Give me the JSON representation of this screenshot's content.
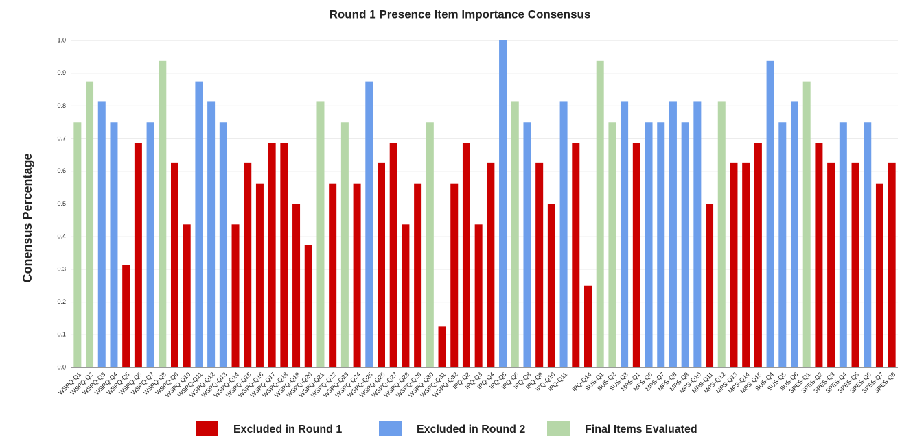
{
  "chart_data": {
    "type": "bar",
    "title": "Round 1 Presence Item Importance Consensus",
    "y_label": "Conensus Percentage",
    "categories": [
      "WSPQ-Q1",
      "WSPQ-Q2",
      "WSPQ-Q3",
      "WSPQ-Q4",
      "WSPQ-Q5",
      "WSPQ-Q6",
      "WSPQ-Q7",
      "WSPQ-Q8",
      "WSPQ-Q9",
      "WSPQ-Q10",
      "WSPQ-Q11",
      "WSPQ-Q12",
      "WSPQ-Q13",
      "WSPQ-Q14",
      "WSPQ-Q15",
      "WSPQ-Q16",
      "WSPQ-Q17",
      "WSPQ-Q18",
      "WSPQ-Q19",
      "WSPQ-Q20",
      "WSPQ-Q21",
      "WSPQ-Q22",
      "WSPQ-Q23",
      "WSPQ-Q24",
      "WSPQ-Q25",
      "WSPQ-Q26",
      "WSPQ-Q27",
      "WSPQ-Q28",
      "WSPQ-Q29",
      "WSPQ-Q30",
      "WSPQ-Q31",
      "WSPQ-Q32",
      "IPQ-Q2",
      "IPQ-Q3",
      "IPQ-Q4",
      "IPQ-Q5",
      "IPQ-Q6",
      "IPQ-Q8",
      "IPQ-Q9",
      "IPQ-Q10",
      "IPQ-Q11",
      null,
      "IPQ-Q14",
      "SUS-Q1",
      "SUS-Q2",
      "SUS-Q3",
      "MPS-Q1",
      "MPS-Q6",
      "MPS-Q7",
      "MPS-Q8",
      "MPS-Q9",
      "MPS-Q10",
      "MPS-Q11",
      "MPS-Q12",
      "MPS-Q13",
      "MPS-Q14",
      "MPS-Q15",
      "SUS-Q4",
      "SUS-Q5",
      "SUS-Q6",
      "SPES-Q1",
      "SPES-Q2",
      "SPES-Q3",
      "SPES-Q4",
      "SPES-Q5",
      "SPES-Q6",
      "SPES-Q7",
      "SPES-Q8"
    ],
    "series": [
      {
        "name": "Excluded in Round 1",
        "color": "#cc0000",
        "values": [
          null,
          null,
          null,
          null,
          0.3125,
          0.6875,
          null,
          null,
          0.625,
          0.4375,
          null,
          null,
          null,
          0.4375,
          0.625,
          0.5625,
          0.6875,
          0.6875,
          0.5,
          0.375,
          null,
          0.5625,
          null,
          0.5625,
          null,
          0.625,
          0.6875,
          0.4375,
          0.5625,
          null,
          0.125,
          0.5625,
          0.6875,
          0.4375,
          0.625,
          null,
          null,
          null,
          0.625,
          0.5,
          null,
          0.6875,
          0.25,
          null,
          null,
          null,
          0.6875,
          null,
          null,
          null,
          null,
          null,
          0.5,
          null,
          0.625,
          0.625,
          0.6875,
          null,
          null,
          null,
          null,
          0.6875,
          0.625,
          null,
          0.625,
          null,
          0.5625,
          0.625
        ]
      },
      {
        "name": "Excluded in Round 2",
        "color": "#6d9eeb",
        "values": [
          null,
          null,
          0.8125,
          0.75,
          null,
          null,
          0.75,
          null,
          null,
          null,
          0.875,
          0.8125,
          0.75,
          null,
          null,
          null,
          null,
          null,
          null,
          null,
          null,
          null,
          null,
          null,
          0.875,
          null,
          null,
          null,
          null,
          null,
          null,
          null,
          null,
          null,
          null,
          1.0,
          null,
          0.75,
          null,
          null,
          0.8125,
          null,
          null,
          null,
          null,
          0.8125,
          null,
          0.75,
          0.75,
          0.8125,
          0.75,
          0.8125,
          null,
          null,
          null,
          null,
          null,
          0.9375,
          0.75,
          0.8125,
          null,
          null,
          null,
          0.75,
          null,
          0.75,
          null,
          null
        ]
      },
      {
        "name": "Final Items Evaluated",
        "color": "#b6d7a8",
        "values": [
          0.75,
          0.875,
          null,
          null,
          null,
          null,
          null,
          0.9375,
          null,
          null,
          null,
          null,
          null,
          null,
          null,
          null,
          null,
          null,
          null,
          null,
          0.8125,
          null,
          0.75,
          null,
          null,
          null,
          null,
          null,
          null,
          0.75,
          null,
          null,
          null,
          null,
          null,
          null,
          0.8125,
          null,
          null,
          null,
          null,
          null,
          null,
          0.9375,
          0.75,
          null,
          null,
          null,
          null,
          null,
          null,
          null,
          null,
          0.8125,
          null,
          null,
          null,
          null,
          null,
          null,
          0.875,
          null,
          null,
          null,
          null,
          null,
          null,
          null
        ]
      }
    ],
    "ylim": [
      0,
      1
    ],
    "yticks": [
      {
        "value": 0,
        "label": "0.0"
      },
      0.1,
      0.2,
      0.3,
      0.4,
      0.5,
      0.6,
      0.7,
      0.8,
      0.9,
      {
        "value": 1,
        "label": "1.0"
      }
    ],
    "grid": true,
    "legend": "bottom"
  }
}
